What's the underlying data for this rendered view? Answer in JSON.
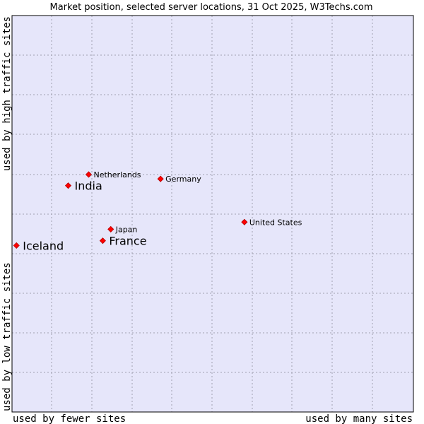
{
  "chart_data": {
    "type": "scatter",
    "title": "Market position, selected server locations, 31 Oct 2025, W3Techs.com",
    "xlabel_left": "used by fewer sites",
    "xlabel_right": "used by many sites",
    "ylabel_bottom": "used by low traffic sites",
    "ylabel_top": "used by high traffic sites",
    "xlim": [
      0,
      100
    ],
    "ylim": [
      0,
      100
    ],
    "grid": true,
    "colors": {
      "plot_bg": "#e6e6fa",
      "grid": "#a0a0b0",
      "border": "#000000",
      "marker": "#ff0000",
      "marker_edge": "#b00000"
    },
    "points": [
      {
        "name": "Netherlands",
        "x": 19.1,
        "y": 59.9,
        "emphasis": false
      },
      {
        "name": "India",
        "x": 14.0,
        "y": 57.1,
        "emphasis": true
      },
      {
        "name": "Germany",
        "x": 37.0,
        "y": 58.8,
        "emphasis": false
      },
      {
        "name": "United States",
        "x": 57.9,
        "y": 47.9,
        "emphasis": false
      },
      {
        "name": "Japan",
        "x": 24.6,
        "y": 46.1,
        "emphasis": false
      },
      {
        "name": "France",
        "x": 22.6,
        "y": 43.2,
        "emphasis": true
      },
      {
        "name": "Iceland",
        "x": 1.1,
        "y": 42.0,
        "emphasis": true
      }
    ]
  }
}
